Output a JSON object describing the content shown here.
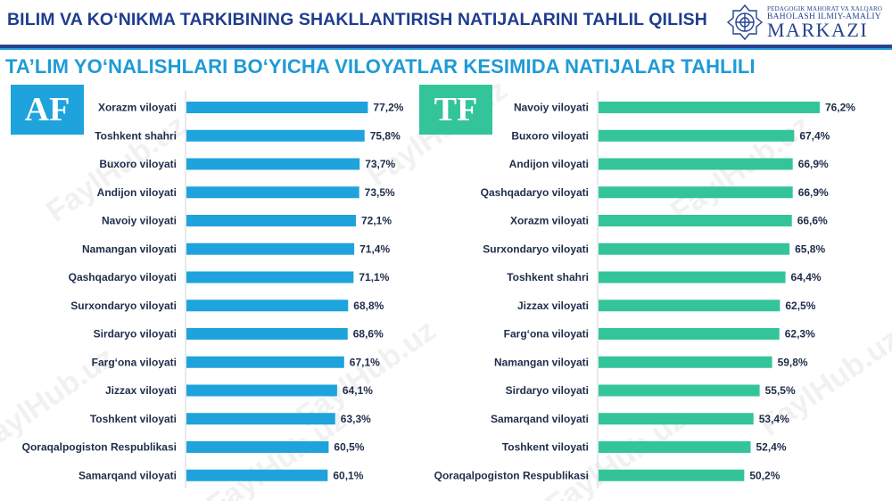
{
  "header": {
    "title": "BILIM VA KO‘NIKMA TARKIBINING SHAKLLANTIRISH NATIJALARINI TAHLIL QILISH",
    "logo": {
      "line1": "PEDAGOGIK MAHORAT VA XALQARO",
      "line2": "BAHOLASH ILMIY-AMALIY",
      "line3": "MARKAZI",
      "icon": "emblem-icon"
    }
  },
  "subtitle": "TA’LIM YO‘NALISHLARI BO‘YICHA VILOYATLAR KESIMIDA NATIJALAR TAHLILI",
  "watermark": "FaylHub.uz",
  "colors": {
    "af": "#1ea3dc",
    "tf": "#33c49a",
    "title": "#1f3d8f",
    "subtitle": "#1e9bd7"
  },
  "chart_data": [
    {
      "type": "bar",
      "orientation": "horizontal",
      "badge": "AF",
      "color": "#1ea3dc",
      "categories": [
        "Xorazm viloyati",
        "Toshkent shahri",
        "Buxoro viloyati",
        "Andijon viloyati",
        "Navoiy viloyati",
        "Namangan viloyati",
        "Qashqadaryo viloyati",
        "Surxondaryo viloyati",
        "Sirdaryo viloyati",
        "Farg‘ona viloyati",
        "Jizzax viloyati",
        "Toshkent viloyati",
        "Qoraqalpogiston Respublikasi",
        "Samarqand viloyati"
      ],
      "values": [
        77.2,
        75.8,
        73.7,
        73.5,
        72.1,
        71.4,
        71.1,
        68.8,
        68.6,
        67.1,
        64.1,
        63.3,
        60.5,
        60.1
      ],
      "value_labels": [
        "77,2%",
        "75,8%",
        "73,7%",
        "73,5%",
        "72,1%",
        "71,4%",
        "71,1%",
        "68,8%",
        "68,6%",
        "67,1%",
        "64,1%",
        "63,3%",
        "60,5%",
        "60,1%"
      ],
      "xlim": [
        0,
        100
      ]
    },
    {
      "type": "bar",
      "orientation": "horizontal",
      "badge": "TF",
      "color": "#33c49a",
      "categories": [
        "Navoiy viloyati",
        "Buxoro viloyati",
        "Andijon viloyati",
        "Qashqadaryo viloyati",
        "Xorazm viloyati",
        "Surxondaryo viloyati",
        "Toshkent shahri",
        "Jizzax viloyati",
        "Farg‘ona viloyati",
        "Namangan viloyati",
        "Sirdaryo viloyati",
        "Samarqand viloyati",
        "Toshkent viloyati",
        "Qoraqalpogiston Respublikasi"
      ],
      "values": [
        76.2,
        67.4,
        66.9,
        66.9,
        66.6,
        65.8,
        64.4,
        62.5,
        62.3,
        59.8,
        55.5,
        53.4,
        52.4,
        50.2
      ],
      "value_labels": [
        "76,2%",
        "67,4%",
        "66,9%",
        "66,9%",
        "66,6%",
        "65,8%",
        "64,4%",
        "62,5%",
        "62,3%",
        "59,8%",
        "55,5%",
        "53,4%",
        "52,4%",
        "50,2%"
      ],
      "xlim": [
        0,
        100
      ]
    }
  ]
}
